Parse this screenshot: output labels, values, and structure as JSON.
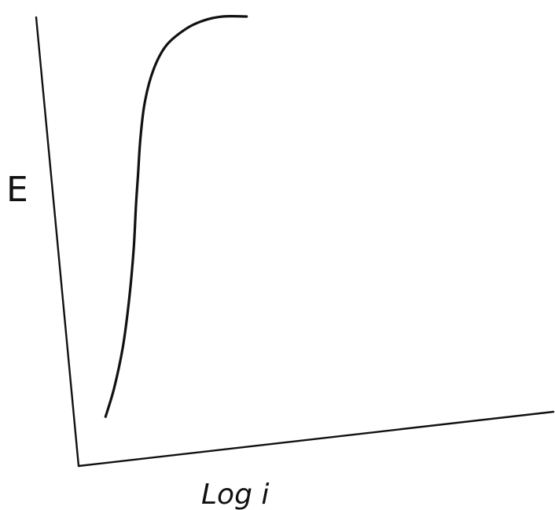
{
  "chart_data": {
    "type": "line",
    "title": "",
    "xlabel": "Log i",
    "ylabel": "E",
    "xlim": [
      0,
      100
    ],
    "ylim": [
      0,
      100
    ],
    "grid": false,
    "series": [
      {
        "x": [
          3,
          7,
          11,
          14,
          16,
          17,
          18,
          19,
          21,
          25,
          31,
          40,
          48,
          57,
          68
        ],
        "y": [
          3,
          10,
          20,
          32,
          44,
          54,
          62,
          70,
          79,
          87,
          93,
          97,
          99,
          100,
          100
        ]
      }
    ]
  },
  "colors": {
    "ink": "#111111",
    "background": "#ffffff"
  }
}
